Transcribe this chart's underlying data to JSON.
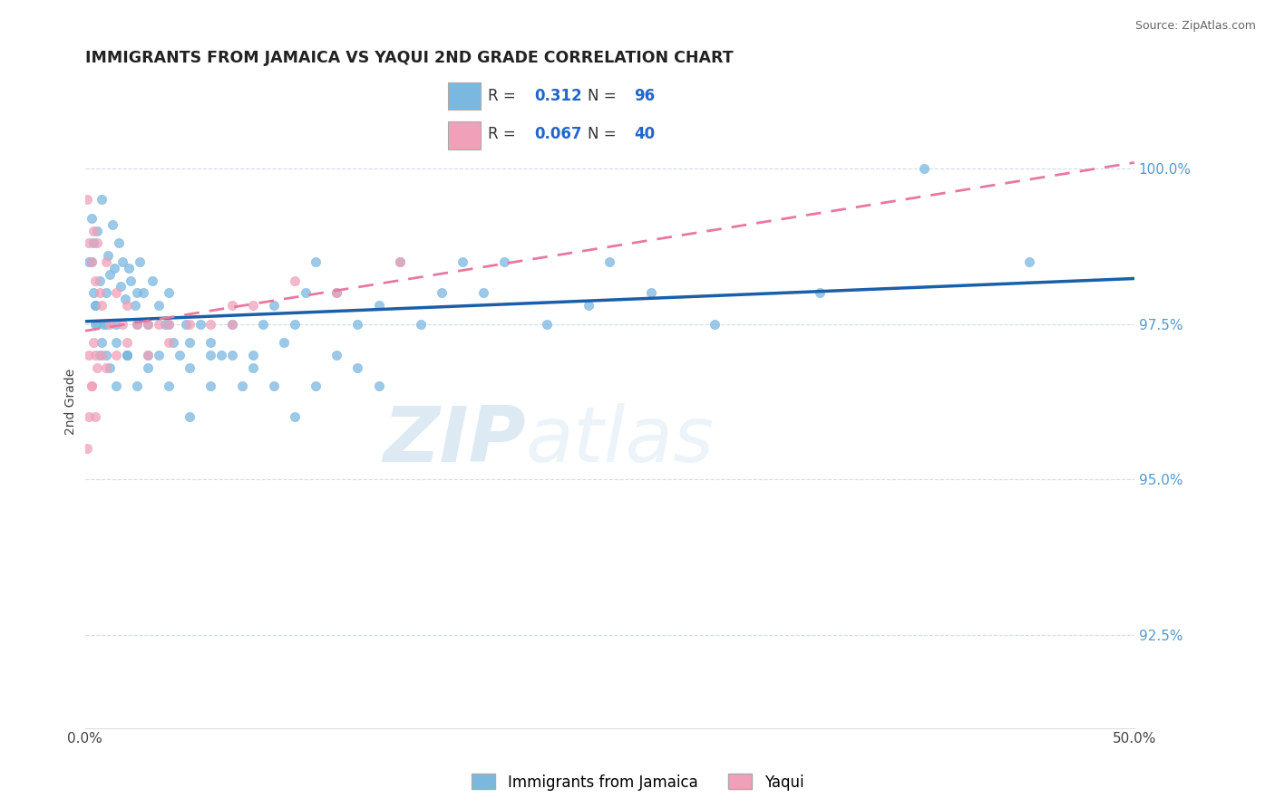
{
  "title": "IMMIGRANTS FROM JAMAICA VS YAQUI 2ND GRADE CORRELATION CHART",
  "source_text": "Source: ZipAtlas.com",
  "ylabel": "2nd Grade",
  "xlim": [
    0.0,
    50.0
  ],
  "ylim": [
    91.0,
    101.5
  ],
  "yticks": [
    92.5,
    95.0,
    97.5,
    100.0
  ],
  "ytick_labels": [
    "92.5%",
    "95.0%",
    "97.5%",
    "100.0%"
  ],
  "xticks": [
    0.0,
    50.0
  ],
  "xtick_labels": [
    "0.0%",
    "50.0%"
  ],
  "blue_R": 0.312,
  "blue_N": 96,
  "pink_R": 0.067,
  "pink_N": 40,
  "blue_color": "#7ab8e0",
  "pink_color": "#f0a0b8",
  "trend_blue_color": "#1a5fa8",
  "trend_pink_color": "#e878a0",
  "legend_label_blue": "Immigrants from Jamaica",
  "legend_label_pink": "Yaqui",
  "watermark_zip": "ZIP",
  "watermark_atlas": "atlas",
  "blue_scatter_x": [
    0.2,
    0.3,
    0.4,
    0.5,
    0.6,
    0.7,
    0.8,
    0.9,
    1.0,
    1.1,
    1.2,
    1.3,
    1.4,
    1.5,
    1.6,
    1.7,
    1.8,
    1.9,
    2.0,
    2.1,
    2.2,
    2.4,
    2.5,
    2.6,
    2.8,
    3.0,
    3.2,
    3.5,
    3.8,
    4.0,
    4.2,
    4.5,
    4.8,
    5.0,
    5.5,
    6.0,
    6.5,
    7.0,
    7.5,
    8.0,
    8.5,
    9.0,
    9.5,
    10.0,
    10.5,
    11.0,
    12.0,
    13.0,
    14.0,
    15.0,
    16.0,
    17.0,
    18.0,
    19.0,
    20.0,
    22.0,
    24.0,
    25.0,
    27.0,
    30.0,
    35.0,
    40.0,
    0.4,
    0.5,
    0.6,
    0.8,
    1.0,
    1.2,
    1.5,
    2.0,
    2.5,
    3.0,
    3.5,
    4.0,
    5.0,
    6.0,
    7.0,
    8.0,
    9.0,
    10.0,
    11.0,
    12.0,
    13.0,
    14.0,
    0.3,
    0.5,
    0.7,
    1.0,
    1.5,
    2.0,
    2.5,
    3.0,
    4.0,
    5.0,
    6.0,
    45.0
  ],
  "blue_scatter_y": [
    98.5,
    99.2,
    98.8,
    97.8,
    99.0,
    98.2,
    99.5,
    97.5,
    98.0,
    98.6,
    98.3,
    99.1,
    98.4,
    97.2,
    98.8,
    98.1,
    98.5,
    97.9,
    97.0,
    98.4,
    98.2,
    97.8,
    98.0,
    98.5,
    98.0,
    97.5,
    98.2,
    97.8,
    97.5,
    98.0,
    97.2,
    97.0,
    97.5,
    96.8,
    97.5,
    97.2,
    97.0,
    97.5,
    96.5,
    97.0,
    97.5,
    97.8,
    97.2,
    97.5,
    98.0,
    98.5,
    98.0,
    97.5,
    97.8,
    98.5,
    97.5,
    98.0,
    98.5,
    98.0,
    98.5,
    97.5,
    97.8,
    98.5,
    98.0,
    97.5,
    98.0,
    100.0,
    98.0,
    97.8,
    97.5,
    97.2,
    97.0,
    96.8,
    97.5,
    97.0,
    96.5,
    96.8,
    97.0,
    96.5,
    96.0,
    96.5,
    97.0,
    96.8,
    96.5,
    96.0,
    96.5,
    97.0,
    96.8,
    96.5,
    98.5,
    97.5,
    97.0,
    97.5,
    96.5,
    97.0,
    97.5,
    97.0,
    97.5,
    97.2,
    97.0,
    98.5
  ],
  "pink_scatter_x": [
    0.1,
    0.2,
    0.3,
    0.4,
    0.5,
    0.6,
    0.7,
    0.8,
    1.0,
    1.2,
    1.5,
    1.8,
    2.0,
    2.5,
    3.0,
    3.5,
    4.0,
    5.0,
    6.0,
    7.0,
    8.0,
    10.0,
    12.0,
    15.0,
    0.2,
    0.3,
    0.4,
    0.5,
    0.6,
    0.8,
    1.0,
    1.5,
    2.0,
    3.0,
    4.0,
    0.1,
    0.2,
    0.3,
    0.5,
    7.0
  ],
  "pink_scatter_y": [
    99.5,
    98.8,
    98.5,
    99.0,
    98.2,
    98.8,
    98.0,
    97.8,
    98.5,
    97.5,
    98.0,
    97.5,
    97.8,
    97.5,
    97.0,
    97.5,
    97.2,
    97.5,
    97.5,
    97.8,
    97.8,
    98.2,
    98.0,
    98.5,
    97.0,
    96.5,
    97.2,
    97.0,
    96.8,
    97.0,
    96.8,
    97.0,
    97.2,
    97.5,
    97.5,
    95.5,
    96.0,
    96.5,
    96.0,
    97.5
  ]
}
